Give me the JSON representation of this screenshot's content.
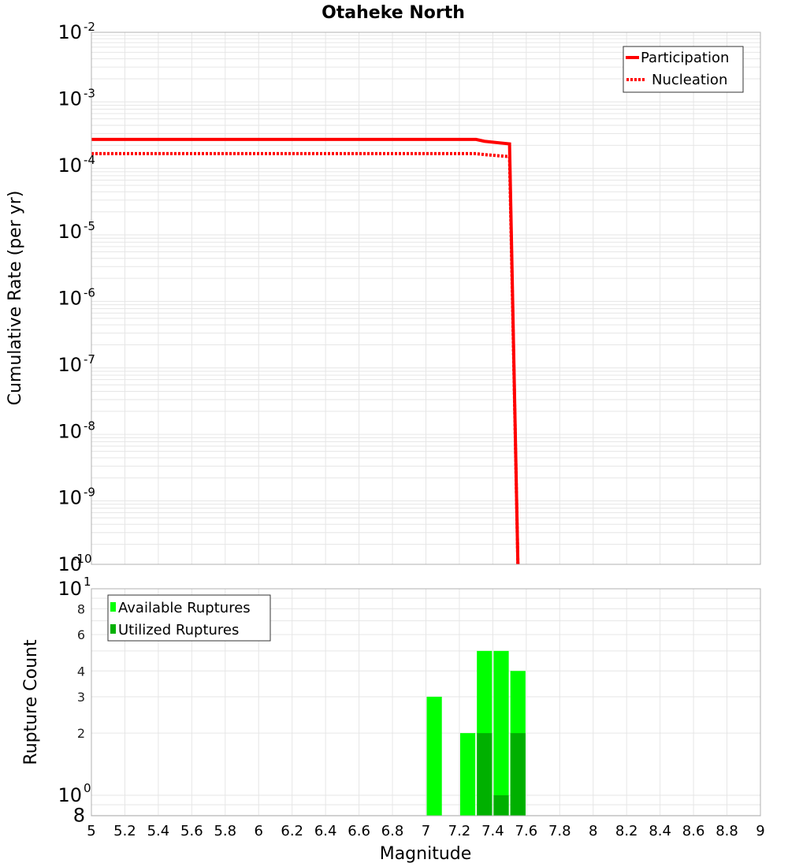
{
  "chart_data": [
    {
      "type": "line",
      "title": "Otaheke North",
      "xlabel": "Magnitude",
      "ylabel": "Cumulative Rate (per yr)",
      "xlim": [
        5,
        9
      ],
      "ylim": [
        1e-10,
        0.01
      ],
      "yscale": "log",
      "grid": true,
      "legend_position": "upper right",
      "x_ticks": [
        "5",
        "5.2",
        "5.4",
        "5.6",
        "5.8",
        "6",
        "6.2",
        "6.4",
        "6.6",
        "6.8",
        "7",
        "7.2",
        "7.4",
        "7.6",
        "7.8",
        "8",
        "8.2",
        "8.4",
        "8.6",
        "8.8",
        "9"
      ],
      "y_ticks": [
        {
          "base": "10",
          "exp": "-2",
          "value": 0.01
        },
        {
          "base": "10",
          "exp": "-3",
          "value": 0.001
        },
        {
          "base": "10",
          "exp": "-4",
          "value": 0.0001
        },
        {
          "base": "10",
          "exp": "-5",
          "value": 1e-05
        },
        {
          "base": "10",
          "exp": "-6",
          "value": 1e-06
        },
        {
          "base": "10",
          "exp": "-7",
          "value": 1e-07
        },
        {
          "base": "10",
          "exp": "-8",
          "value": 1e-08
        },
        {
          "base": "10",
          "exp": "-9",
          "value": 1e-09
        },
        {
          "base": "10",
          "exp": "-10",
          "value": 1e-10
        }
      ],
      "series": [
        {
          "name": "Participation",
          "style": "solid",
          "color": "#ff0000",
          "x": [
            5.0,
            7.3,
            7.35,
            7.5,
            7.55
          ],
          "y": [
            0.000245,
            0.000245,
            0.00023,
            0.00021,
            1e-10
          ]
        },
        {
          "name": "Nucleation",
          "style": "dotted",
          "color": "#ff0000",
          "x": [
            5.0,
            7.3,
            7.35,
            7.5,
            7.55
          ],
          "y": [
            0.00015,
            0.00015,
            0.000145,
            0.000135,
            1e-10
          ]
        }
      ]
    },
    {
      "type": "bar",
      "xlabel": "Magnitude",
      "ylabel": "Rupture Count",
      "xlim": [
        5,
        9
      ],
      "ylim": [
        0.8,
        10
      ],
      "yscale": "log",
      "grid": true,
      "legend_position": "upper left",
      "y_ticks": [
        {
          "label": "10",
          "exp": "1",
          "value": 10,
          "major": true
        },
        {
          "label": "8",
          "value": 8,
          "major": false
        },
        {
          "label": "6",
          "value": 6,
          "major": false
        },
        {
          "label": "4",
          "value": 4,
          "major": false
        },
        {
          "label": "3",
          "value": 3,
          "major": false
        },
        {
          "label": "2",
          "value": 2,
          "major": false
        },
        {
          "label": "10",
          "exp": "0",
          "value": 1,
          "major": true
        },
        {
          "label": "8",
          "value": 0.8,
          "major": true
        }
      ],
      "bin_width": 0.1,
      "categories": [
        7.05,
        7.25,
        7.35,
        7.45,
        7.55
      ],
      "series": [
        {
          "name": "Available Ruptures",
          "color": "#00ff00",
          "values": [
            3,
            2,
            5,
            5,
            4
          ]
        },
        {
          "name": "Utilized Ruptures",
          "color": "#00b000",
          "values": [
            0,
            0,
            2,
            1,
            2
          ]
        }
      ]
    }
  ],
  "labels": {
    "title": "Otaheke North",
    "top_ylabel": "Cumulative Rate (per yr)",
    "bottom_ylabel": "Rupture Count",
    "xlabel": "Magnitude",
    "legend_top": [
      "Participation",
      "Nucleation"
    ],
    "legend_bottom": [
      "Available Ruptures",
      "Utilized Ruptures"
    ]
  },
  "colors": {
    "line": "#ff0000",
    "available": "#00ff00",
    "utilized": "#00b000",
    "grid": "#e6e6e6",
    "frame": "#b0b0b0"
  }
}
